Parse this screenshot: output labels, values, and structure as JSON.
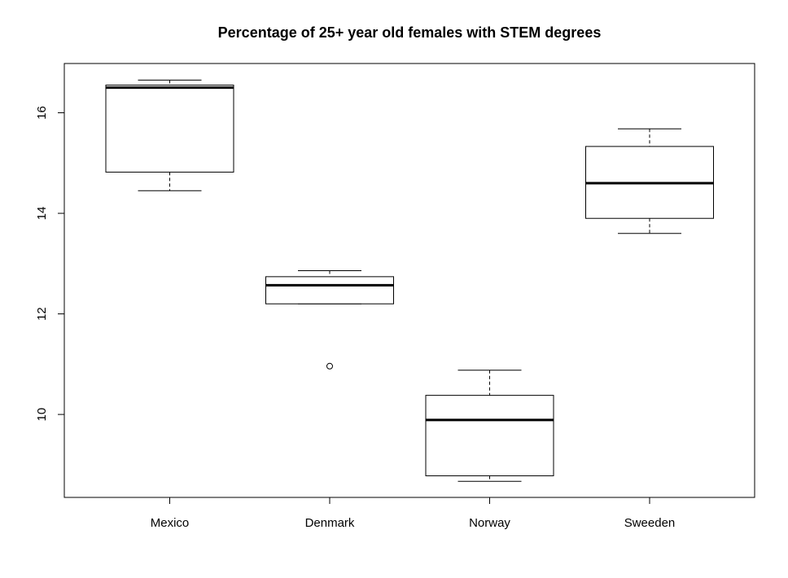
{
  "chart_data": {
    "type": "boxplot",
    "title": "Percentage of 25+ year old females with STEM degrees",
    "xlabel": "",
    "ylabel": "",
    "ylim": [
      8.35,
      16.98
    ],
    "yticks": [
      10,
      12,
      14,
      16
    ],
    "grid": false,
    "categories": [
      "Mexico",
      "Denmark",
      "Norway",
      "Sweeden"
    ],
    "boxes": [
      {
        "category": "Mexico",
        "whisker_low": 14.45,
        "q1": 14.82,
        "median": 16.5,
        "q3": 16.55,
        "whisker_high": 16.65,
        "outliers": []
      },
      {
        "category": "Denmark",
        "whisker_low": 12.2,
        "q1": 12.2,
        "median": 12.57,
        "q3": 12.74,
        "whisker_high": 12.86,
        "outliers": [
          10.96
        ]
      },
      {
        "category": "Norway",
        "whisker_low": 8.67,
        "q1": 8.78,
        "median": 9.89,
        "q3": 10.38,
        "whisker_high": 10.88,
        "outliers": []
      },
      {
        "category": "Sweeden",
        "whisker_low": 13.6,
        "q1": 13.9,
        "median": 14.6,
        "q3": 15.33,
        "whisker_high": 15.68,
        "outliers": []
      }
    ],
    "colors": {
      "stroke": "#000000",
      "fill": "#ffffff",
      "background": "#ffffff"
    }
  }
}
